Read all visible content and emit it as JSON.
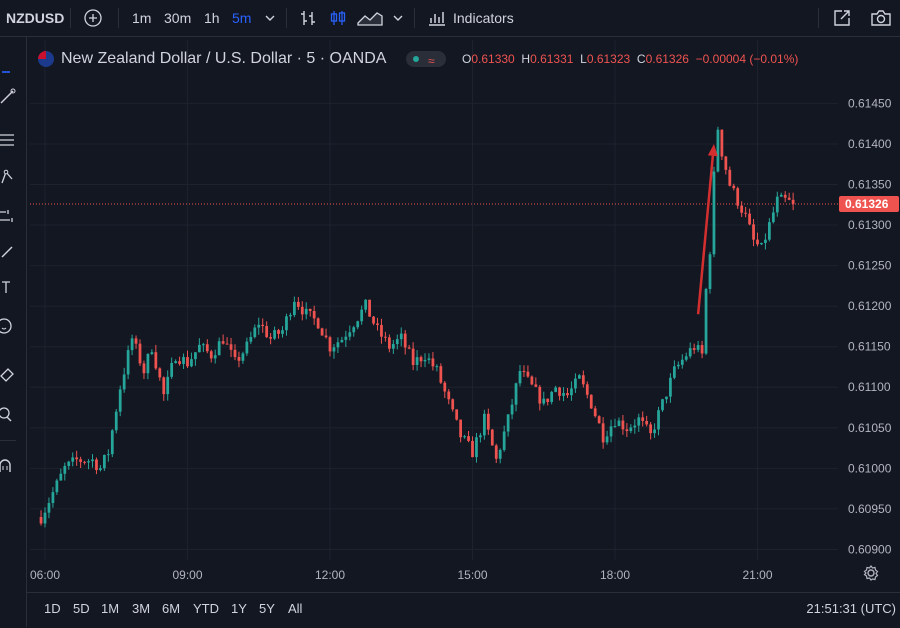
{
  "toolbar": {
    "symbol": "NZDUSD",
    "intervals": [
      "1m",
      "30m",
      "1h",
      "5m"
    ],
    "active_interval": "5m",
    "indicators_label": "Indicators",
    "icons": [
      "add-symbol-icon",
      "chevron-down-icon",
      "bar-style-icon",
      "candle-style-icon",
      "area-style-icon",
      "chevron-down-icon",
      "indicators-icon",
      "fullscreen-icon",
      "camera-icon"
    ]
  },
  "left_tools": [
    "cursor-icon",
    "trend-line-icon",
    "fib-icon",
    "pattern-icon",
    "projection-icon",
    "brush-icon",
    "text-icon",
    "emoji-icon",
    "ruler-icon",
    "zoom-icon",
    "magnet-icon"
  ],
  "legend": {
    "title": "New Zealand Dollar / U.S. Dollar · 5 · OANDA",
    "o_key": "O",
    "o": "0.61330",
    "h_key": "H",
    "h": "0.61331",
    "l_key": "L",
    "l": "0.61323",
    "c_key": "C",
    "c": "0.61326",
    "change": "−0.00004 (−0.01%)",
    "status_glyph": "≈"
  },
  "colors": {
    "background": "#131722",
    "up": "#26a69a",
    "down": "#ef5350",
    "grid": "#1e222d",
    "text": "#b2b5be",
    "arrow": "#d32f2f"
  },
  "chart_data": {
    "type": "candlestick",
    "y_axis": {
      "ticks": [
        0.6145,
        0.614,
        0.6135,
        0.613,
        0.6125,
        0.612,
        0.6115,
        0.611,
        0.6105,
        0.61,
        0.6095,
        0.609
      ],
      "tick_labels": [
        "0.61450",
        "0.61400",
        "0.61350",
        "0.61300",
        "0.61250",
        "0.61200",
        "0.61150",
        "0.61100",
        "0.61050",
        "0.61000",
        "0.60950",
        "0.60900"
      ],
      "range": [
        0.60887,
        0.61485
      ]
    },
    "x_axis": {
      "tick_labels": [
        "06:00",
        "09:00",
        "12:00",
        "15:00",
        "18:00",
        "21:00"
      ],
      "bar_minutes": 5,
      "start": "06:00"
    },
    "last_price": 0.61326,
    "last_price_label": "0.61326",
    "arrow": {
      "from": [
        "19:45",
        0.6119
      ],
      "to": [
        "20:05",
        0.614
      ]
    },
    "anchors": [
      [
        "05:55",
        0.6094
      ],
      [
        "06:25",
        0.61
      ],
      [
        "06:40",
        0.6101
      ],
      [
        "07:00",
        0.6101
      ],
      [
        "07:10",
        0.61
      ],
      [
        "07:20",
        0.6102
      ],
      [
        "07:35",
        0.611
      ],
      [
        "07:50",
        0.6116
      ],
      [
        "08:05",
        0.6112
      ],
      [
        "08:15",
        0.6115
      ],
      [
        "08:30",
        0.6109
      ],
      [
        "08:45",
        0.6114
      ],
      [
        "09:00",
        0.6113
      ],
      [
        "09:15",
        0.6115
      ],
      [
        "09:30",
        0.6114
      ],
      [
        "09:45",
        0.6116
      ],
      [
        "10:00",
        0.6113
      ],
      [
        "10:15",
        0.6115
      ],
      [
        "10:30",
        0.6118
      ],
      [
        "10:45",
        0.6116
      ],
      [
        "11:00",
        0.6117
      ],
      [
        "11:15",
        0.6121
      ],
      [
        "11:30",
        0.6119
      ],
      [
        "11:45",
        0.6118
      ],
      [
        "12:00",
        0.6115
      ],
      [
        "12:15",
        0.6116
      ],
      [
        "12:30",
        0.6118
      ],
      [
        "12:45",
        0.612
      ],
      [
        "13:00",
        0.6117
      ],
      [
        "13:15",
        0.6115
      ],
      [
        "13:30",
        0.6116
      ],
      [
        "13:45",
        0.6113
      ],
      [
        "14:00",
        0.6114
      ],
      [
        "14:15",
        0.6112
      ],
      [
        "14:30",
        0.6108
      ],
      [
        "14:45",
        0.6104
      ],
      [
        "15:00",
        0.6102
      ],
      [
        "15:15",
        0.6106
      ],
      [
        "15:30",
        0.6101
      ],
      [
        "15:45",
        0.6106
      ],
      [
        "16:00",
        0.6112
      ],
      [
        "16:15",
        0.611
      ],
      [
        "16:30",
        0.6108
      ],
      [
        "16:45",
        0.611
      ],
      [
        "17:00",
        0.6109
      ],
      [
        "17:15",
        0.6111
      ],
      [
        "17:30",
        0.6108
      ],
      [
        "17:45",
        0.6104
      ],
      [
        "18:00",
        0.6106
      ],
      [
        "18:15",
        0.6105
      ],
      [
        "18:30",
        0.6106
      ],
      [
        "18:45",
        0.6104
      ],
      [
        "19:00",
        0.6108
      ],
      [
        "19:15",
        0.6112
      ],
      [
        "19:30",
        0.6114
      ],
      [
        "19:40",
        0.6115
      ],
      [
        "19:50",
        0.6114
      ],
      [
        "19:55",
        0.6122
      ],
      [
        "20:00",
        0.6127
      ],
      [
        "20:05",
        0.6136
      ],
      [
        "20:10",
        0.6142
      ],
      [
        "20:15",
        0.6139
      ],
      [
        "20:25",
        0.6135
      ],
      [
        "20:35",
        0.6133
      ],
      [
        "20:45",
        0.6131
      ],
      [
        "20:55",
        0.6128
      ],
      [
        "21:05",
        0.6127
      ],
      [
        "21:15",
        0.613
      ],
      [
        "21:25",
        0.6133
      ],
      [
        "21:35",
        0.6133
      ],
      [
        "21:45",
        0.61326
      ]
    ]
  },
  "bottom": {
    "ranges": [
      "1D",
      "5D",
      "1M",
      "3M",
      "6M",
      "YTD",
      "1Y",
      "5Y",
      "All"
    ],
    "clock": "21:51:31 (UTC)"
  }
}
